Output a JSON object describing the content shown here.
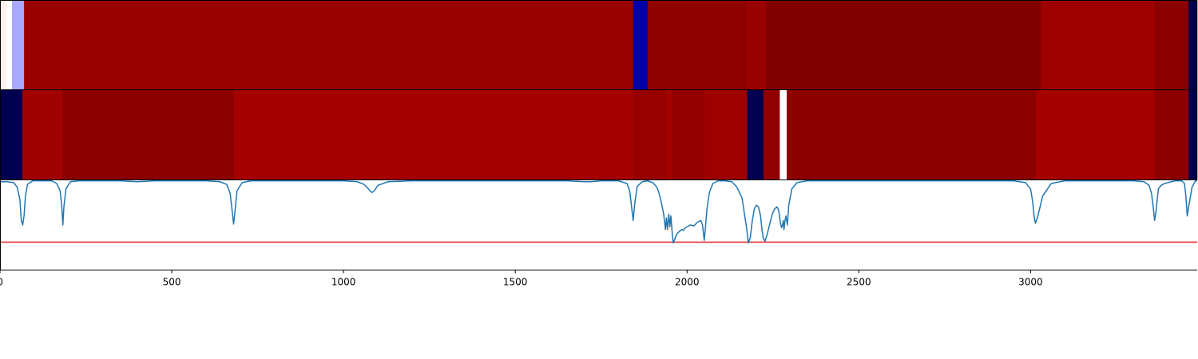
{
  "chart_data": [
    {
      "type": "heatmap",
      "x_range": [
        0,
        3485
      ],
      "cmap": "seismic",
      "segments": [
        {
          "x0": 0,
          "x1": 20,
          "color": "#fff0f0"
        },
        {
          "x0": 20,
          "x1": 35,
          "color": "#ffffff"
        },
        {
          "x0": 35,
          "x1": 70,
          "color": "#a8a8ff"
        },
        {
          "x0": 70,
          "x1": 1843,
          "color": "#990000"
        },
        {
          "x0": 1843,
          "x1": 1885,
          "color": "#0000a8"
        },
        {
          "x0": 1885,
          "x1": 2172,
          "color": "#8e0000"
        },
        {
          "x0": 2172,
          "x1": 2230,
          "color": "#990000"
        },
        {
          "x0": 2230,
          "x1": 3030,
          "color": "#800000"
        },
        {
          "x0": 3030,
          "x1": 3360,
          "color": "#9e0000"
        },
        {
          "x0": 3360,
          "x1": 3460,
          "color": "#8a0000"
        },
        {
          "x0": 3460,
          "x1": 3485,
          "color": "#000050"
        }
      ]
    },
    {
      "type": "heatmap",
      "x_range": [
        0,
        3485
      ],
      "cmap": "seismic",
      "segments": [
        {
          "x0": 0,
          "x1": 65,
          "color": "#000050"
        },
        {
          "x0": 65,
          "x1": 183,
          "color": "#a00000"
        },
        {
          "x0": 183,
          "x1": 680,
          "color": "#8a0000"
        },
        {
          "x0": 680,
          "x1": 1843,
          "color": "#a40000"
        },
        {
          "x0": 1843,
          "x1": 1940,
          "color": "#980000"
        },
        {
          "x0": 1940,
          "x1": 1958,
          "color": "#a40000"
        },
        {
          "x0": 1958,
          "x1": 2050,
          "color": "#940000"
        },
        {
          "x0": 2050,
          "x1": 2175,
          "color": "#9e0000"
        },
        {
          "x0": 2175,
          "x1": 2222,
          "color": "#000050"
        },
        {
          "x0": 2222,
          "x1": 2270,
          "color": "#900000"
        },
        {
          "x0": 2270,
          "x1": 2290,
          "color": "#ffffff"
        },
        {
          "x0": 2290,
          "x1": 3015,
          "color": "#8c0000"
        },
        {
          "x0": 3015,
          "x1": 3360,
          "color": "#a40000"
        },
        {
          "x0": 3360,
          "x1": 3460,
          "color": "#8c0000"
        },
        {
          "x0": 3460,
          "x1": 3485,
          "color": "#000050"
        }
      ]
    },
    {
      "type": "line",
      "xlim": [
        0,
        3485
      ],
      "ylim": [
        0,
        1.0
      ],
      "xticks": [
        0,
        500,
        1000,
        1500,
        2000,
        2500,
        3000
      ],
      "xtick_labels": [
        "0",
        "500",
        "1000",
        "1500",
        "2000",
        "2500",
        "3000"
      ],
      "threshold": 0.31,
      "threshold_color": "#e41a1c",
      "line_color": "#1f77b4",
      "grid": false,
      "series": [
        {
          "x": [
            0,
            20,
            40,
            50,
            58,
            62,
            66,
            70,
            74,
            80,
            95,
            120,
            150,
            165,
            175,
            180,
            183,
            186,
            192,
            205,
            230,
            280,
            350,
            400,
            450,
            500,
            550,
            600,
            640,
            660,
            670,
            676,
            680,
            684,
            690,
            705,
            730,
            800,
            900,
            1000,
            1040,
            1060,
            1070,
            1077,
            1083,
            1090,
            1100,
            1130,
            1200,
            1300,
            1400,
            1500,
            1600,
            1650,
            1700,
            1720,
            1750,
            1800,
            1825,
            1833,
            1838,
            1843,
            1848,
            1855,
            1870,
            1885,
            1900,
            1912,
            1918,
            1925,
            1932,
            1937,
            1940,
            1943,
            1947,
            1950,
            1953,
            1957,
            1960,
            1965,
            1970,
            1978,
            1985,
            1990,
            1995,
            2000,
            2010,
            2020,
            2030,
            2040,
            2045,
            2050,
            2053,
            2058,
            2065,
            2075,
            2090,
            2110,
            2130,
            2145,
            2160,
            2168,
            2174,
            2178,
            2184,
            2190,
            2196,
            2202,
            2208,
            2214,
            2218,
            2222,
            2227,
            2232,
            2240,
            2248,
            2255,
            2262,
            2267,
            2272,
            2275,
            2278,
            2280,
            2282,
            2285,
            2288,
            2292,
            2296,
            2305,
            2320,
            2350,
            2400,
            2500,
            2600,
            2700,
            2800,
            2900,
            2950,
            2985,
            3000,
            3006,
            3010,
            3014,
            3020,
            3035,
            3060,
            3100,
            3200,
            3300,
            3330,
            3345,
            3352,
            3357,
            3361,
            3365,
            3372,
            3380,
            3390,
            3400,
            3420,
            3440,
            3448,
            3452,
            3456,
            3460,
            3470,
            3480,
            3485
          ],
          "y": [
            0.98,
            0.98,
            0.97,
            0.92,
            0.78,
            0.55,
            0.5,
            0.6,
            0.82,
            0.95,
            0.99,
            0.99,
            0.99,
            0.96,
            0.88,
            0.7,
            0.5,
            0.7,
            0.9,
            0.98,
            0.99,
            0.99,
            0.99,
            0.98,
            0.99,
            0.99,
            0.99,
            0.99,
            0.98,
            0.95,
            0.85,
            0.65,
            0.51,
            0.65,
            0.88,
            0.97,
            0.99,
            0.99,
            0.99,
            0.99,
            0.98,
            0.95,
            0.91,
            0.88,
            0.86,
            0.88,
            0.94,
            0.98,
            0.99,
            0.99,
            0.99,
            0.99,
            0.99,
            0.99,
            0.98,
            0.98,
            0.99,
            0.99,
            0.96,
            0.88,
            0.72,
            0.55,
            0.75,
            0.93,
            0.98,
            0.99,
            0.97,
            0.92,
            0.86,
            0.75,
            0.62,
            0.45,
            0.58,
            0.45,
            0.62,
            0.48,
            0.6,
            0.4,
            0.3,
            0.35,
            0.4,
            0.43,
            0.45,
            0.44,
            0.47,
            0.48,
            0.5,
            0.49,
            0.53,
            0.55,
            0.5,
            0.33,
            0.45,
            0.68,
            0.86,
            0.96,
            0.99,
            0.99,
            0.98,
            0.92,
            0.8,
            0.6,
            0.45,
            0.3,
            0.36,
            0.55,
            0.68,
            0.72,
            0.7,
            0.6,
            0.45,
            0.35,
            0.32,
            0.38,
            0.5,
            0.62,
            0.68,
            0.7,
            0.66,
            0.52,
            0.47,
            0.5,
            0.55,
            0.45,
            0.55,
            0.6,
            0.5,
            0.72,
            0.9,
            0.97,
            0.99,
            0.99,
            0.99,
            0.99,
            0.99,
            0.99,
            0.99,
            0.99,
            0.97,
            0.9,
            0.76,
            0.6,
            0.52,
            0.58,
            0.82,
            0.96,
            0.99,
            0.99,
            0.99,
            0.98,
            0.94,
            0.85,
            0.7,
            0.55,
            0.65,
            0.9,
            0.94,
            0.96,
            0.97,
            0.99,
            0.99,
            0.96,
            0.82,
            0.6,
            0.7,
            0.92,
            0.99,
            0.99
          ]
        }
      ]
    }
  ]
}
